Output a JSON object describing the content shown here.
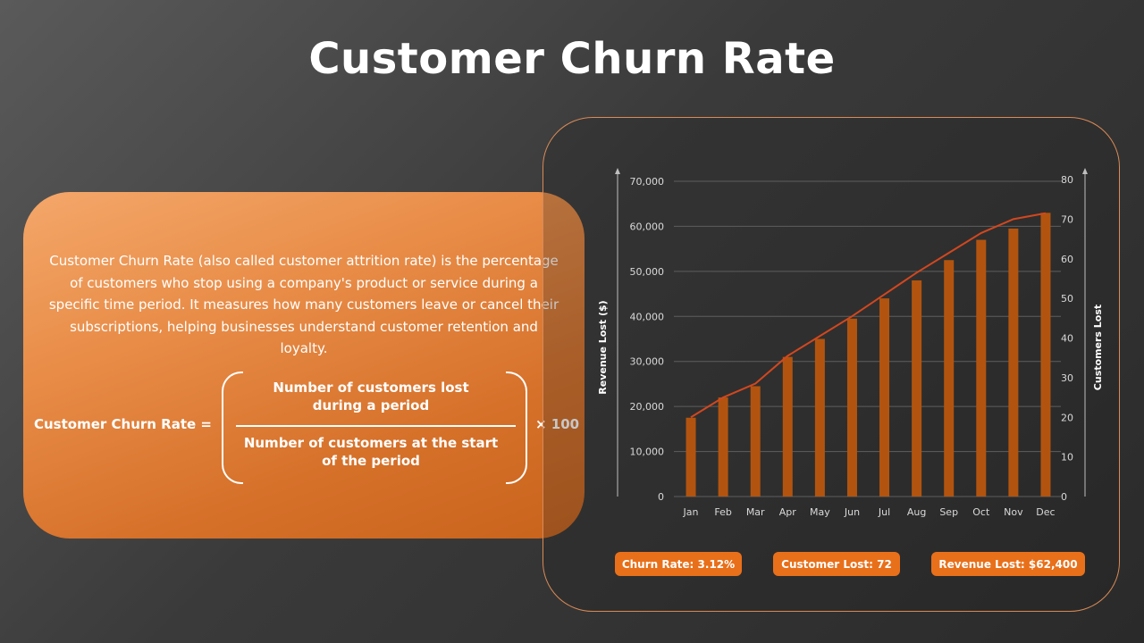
{
  "title": "Customer Churn Rate",
  "info": {
    "description": "Customer Churn Rate (also called customer attrition rate) is the percentage of customers who stop using a company's product or service during a specific time period. It measures how many customers leave or cancel their subscriptions, helping businesses understand customer retention and loyalty.",
    "formula_label": "Customer Churn Rate =",
    "numerator_line1": "Number of customers lost",
    "numerator_line2": "during a period",
    "denominator_line1": "Number of customers at the start",
    "denominator_line2": "of the period",
    "multiplier": "× 100"
  },
  "stats": {
    "churn_rate": "Churn Rate: 3.12%",
    "customer_lost": "Customer Lost: 72",
    "revenue_lost": "Revenue Lost: $62,400"
  },
  "colors": {
    "bar": "#b2540f",
    "line": "#d2471f",
    "accent": "#e8701a",
    "card_orange": "#e88c47"
  },
  "chart_data": {
    "type": "bar",
    "categories": [
      "Jan",
      "Feb",
      "Mar",
      "Apr",
      "May",
      "Jun",
      "Jul",
      "Aug",
      "Sep",
      "Oct",
      "Nov",
      "Dec"
    ],
    "series": [
      {
        "type": "bar",
        "axis": "left",
        "values": [
          17500,
          22000,
          24500,
          31000,
          35000,
          39500,
          44000,
          48000,
          52500,
          57000,
          59500,
          63000
        ]
      },
      {
        "type": "line",
        "axis": "right",
        "values": [
          20,
          25,
          28.5,
          35.5,
          40.5,
          45.5,
          51,
          56.5,
          61.5,
          66.5,
          70,
          71.5
        ]
      }
    ],
    "ylabel": "Revenue Lost ($)",
    "y2label": "Customers Lost",
    "ylim": [
      0,
      70000
    ],
    "yticks": [
      "70,000",
      "60,000",
      "50,000",
      "40,000",
      "30,000",
      "20,000",
      "10,000",
      "0"
    ],
    "y2lim": [
      0,
      80
    ],
    "y2ticks": [
      "80",
      "70",
      "60",
      "50",
      "40",
      "30",
      "20",
      "10",
      "0"
    ],
    "grid": true
  }
}
